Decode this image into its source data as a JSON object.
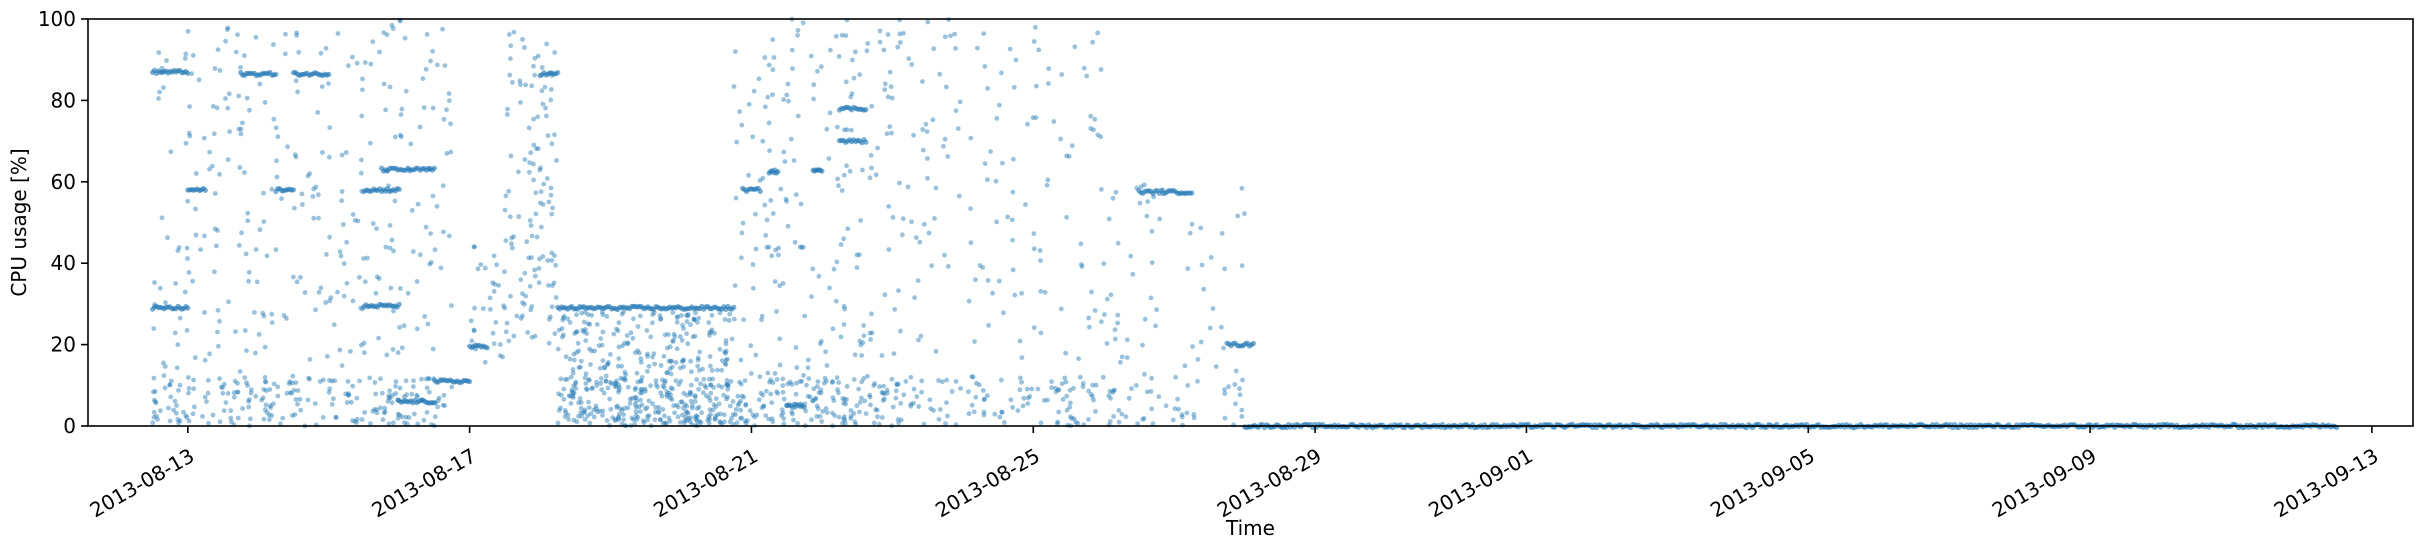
{
  "chart_data": {
    "type": "scatter",
    "xlabel": "Time",
    "ylabel": "CPU usage [%]",
    "ylim": [
      0,
      100
    ],
    "xlim": [
      "2013-08-11T14:00",
      "2013-09-13T14:00"
    ],
    "grid": false,
    "color": "#1f77b4",
    "x_ticks": [
      "2013-08-13",
      "2013-08-17",
      "2013-08-21",
      "2013-08-25",
      "2013-08-29",
      "2013-09-01",
      "2013-09-05",
      "2013-09-09",
      "2013-09-13"
    ],
    "y_ticks": [
      0,
      20,
      40,
      60,
      80,
      100
    ],
    "levels": [
      {
        "start": "2013-08-12T12:00",
        "end": "2013-08-13T00:00",
        "value": 87
      },
      {
        "start": "2013-08-12T12:00",
        "end": "2013-08-13T00:00",
        "value": 29
      },
      {
        "start": "2013-08-13T00:00",
        "end": "2013-08-13T06:00",
        "value": 58
      },
      {
        "start": "2013-08-13T18:00",
        "end": "2013-08-14T06:00",
        "value": 86.5
      },
      {
        "start": "2013-08-14T06:00",
        "end": "2013-08-14T12:00",
        "value": 58
      },
      {
        "start": "2013-08-14T12:00",
        "end": "2013-08-15T00:00",
        "value": 86.5
      },
      {
        "start": "2013-08-15T12:00",
        "end": "2013-08-16T00:00",
        "value": 58
      },
      {
        "start": "2013-08-15T12:00",
        "end": "2013-08-16T00:00",
        "value": 29.5
      },
      {
        "start": "2013-08-15T18:00",
        "end": "2013-08-16T12:00",
        "value": 63
      },
      {
        "start": "2013-08-16T00:00",
        "end": "2013-08-16T12:00",
        "value": 6
      },
      {
        "start": "2013-08-16T12:00",
        "end": "2013-08-17T00:00",
        "value": 11
      },
      {
        "start": "2013-08-17T00:00",
        "end": "2013-08-17T06:00",
        "value": 19.5
      },
      {
        "start": "2013-08-18T00:00",
        "end": "2013-08-18T06:00",
        "value": 86.5
      },
      {
        "start": "2013-08-18T06:00",
        "end": "2013-08-20T18:00",
        "value": 29
      },
      {
        "start": "2013-08-20T21:00",
        "end": "2013-08-21T03:00",
        "value": 58
      },
      {
        "start": "2013-08-21T06:00",
        "end": "2013-08-21T09:00",
        "value": 62.5
      },
      {
        "start": "2013-08-21T12:00",
        "end": "2013-08-21T18:00",
        "value": 5
      },
      {
        "start": "2013-08-21T21:00",
        "end": "2013-08-22T00:00",
        "value": 63
      },
      {
        "start": "2013-08-22T06:00",
        "end": "2013-08-22T15:00",
        "value": 78
      },
      {
        "start": "2013-08-22T06:00",
        "end": "2013-08-22T15:00",
        "value": 70
      },
      {
        "start": "2013-08-26T12:00",
        "end": "2013-08-27T06:00",
        "value": 57.5
      },
      {
        "start": "2013-08-27T18:00",
        "end": "2013-08-28T03:00",
        "value": 20
      },
      {
        "start": "2013-08-28T00:00",
        "end": "2013-09-12T12:00",
        "value": 0
      }
    ],
    "scatter_ranges": [
      {
        "start": "2013-08-12T12:00",
        "end": "2013-08-16T18:00",
        "count": 520,
        "ymax": 100
      },
      {
        "start": "2013-08-17T00:00",
        "end": "2013-08-17T12:00",
        "count": 30,
        "ymin": 15,
        "ymax": 45
      },
      {
        "start": "2013-08-17T12:00",
        "end": "2013-08-18T06:00",
        "count": 120,
        "ymin": 20,
        "ymax": 97
      },
      {
        "start": "2013-08-18T06:00",
        "end": "2013-08-20T18:00",
        "count": 480,
        "ymax": 28
      },
      {
        "start": "2013-08-20T18:00",
        "end": "2013-08-23T00:00",
        "count": 340,
        "ymax": 100
      },
      {
        "start": "2013-08-23T00:00",
        "end": "2013-08-26T00:00",
        "count": 260,
        "ymax": 100
      },
      {
        "start": "2013-08-26T00:00",
        "end": "2013-08-28T00:00",
        "count": 110,
        "ymax": 60
      }
    ]
  }
}
